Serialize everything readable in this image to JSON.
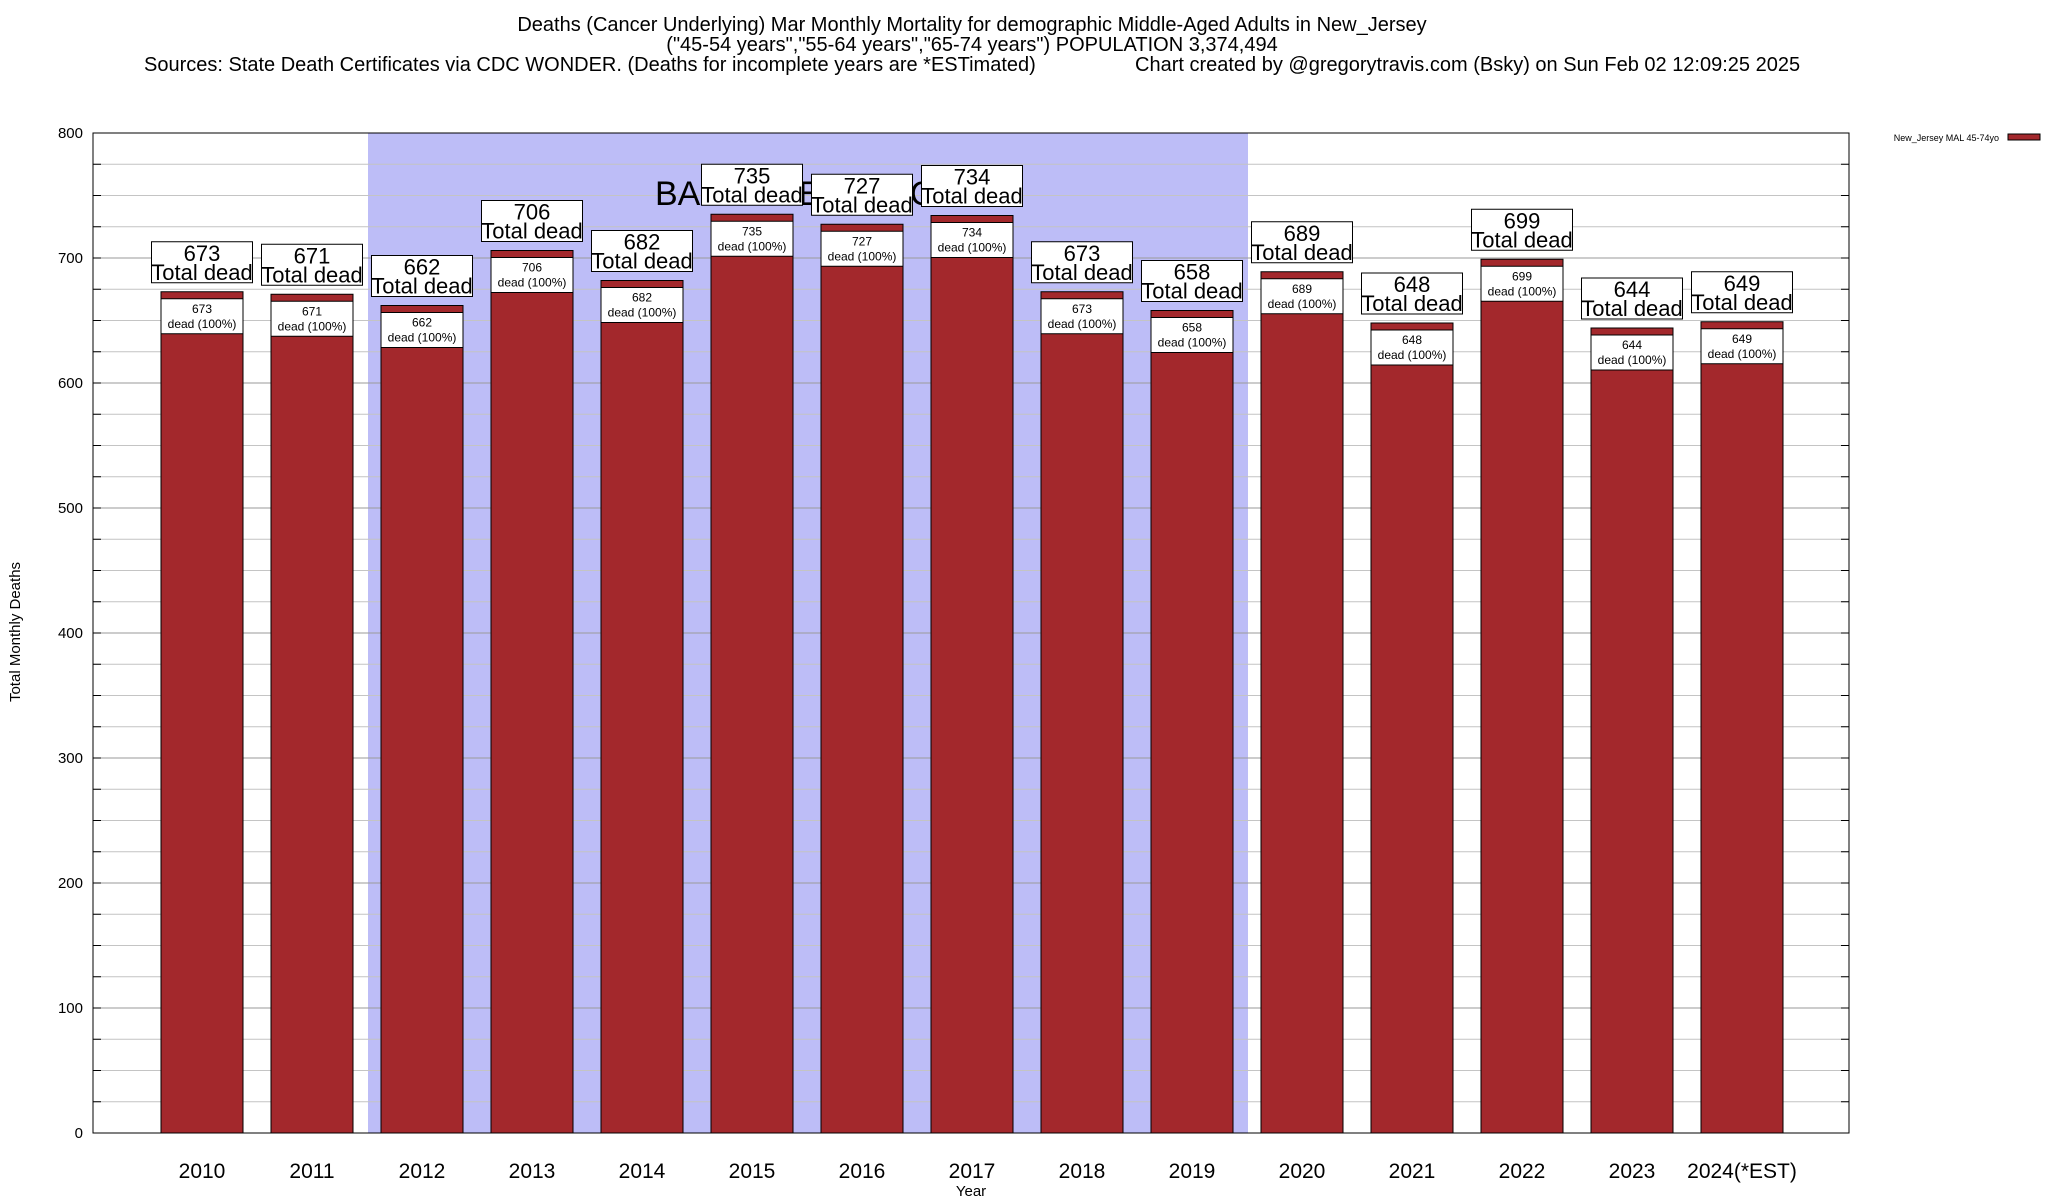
{
  "header": {
    "title_line1": "Deaths (Cancer Underlying) Mar Monthly Mortality for demographic Middle-Aged Adults in New_Jersey",
    "title_line2": "(\"45-54 years\",\"55-64 years\",\"65-74 years\") POPULATION 3,374,494",
    "sources": "Sources: State Death Certificates via CDC WONDER. (Deaths for incomplete years are *ESTimated)",
    "credit": "Chart created by @gregorytravis.com (Bsky) on Sun Feb 02 12:09:25 2025"
  },
  "chart_data": {
    "type": "bar",
    "xlabel": "Year",
    "ylabel": "Total Monthly Deaths",
    "ylim": [
      0,
      800
    ],
    "yticks": [
      0,
      100,
      200,
      300,
      400,
      500,
      600,
      700,
      800
    ],
    "grid": true,
    "legend_position": "top-right",
    "categories": [
      "2010",
      "2011",
      "2012",
      "2013",
      "2014",
      "2015",
      "2016",
      "2017",
      "2018",
      "2019",
      "2020",
      "2021",
      "2022",
      "2023",
      "2024(*EST)"
    ],
    "series": [
      {
        "name": "New_Jersey MAL 45-74yo",
        "color": "#a3282c",
        "values": [
          673,
          671,
          662,
          706,
          682,
          735,
          727,
          734,
          673,
          658,
          689,
          648,
          699,
          644,
          649
        ]
      }
    ],
    "total_label": "Total dead",
    "inner_label": "dead (100%)",
    "baseline_period": {
      "label": "BASELINE PERIOD",
      "start": "2012",
      "end": "2019",
      "color": "#bdbdf7"
    }
  }
}
